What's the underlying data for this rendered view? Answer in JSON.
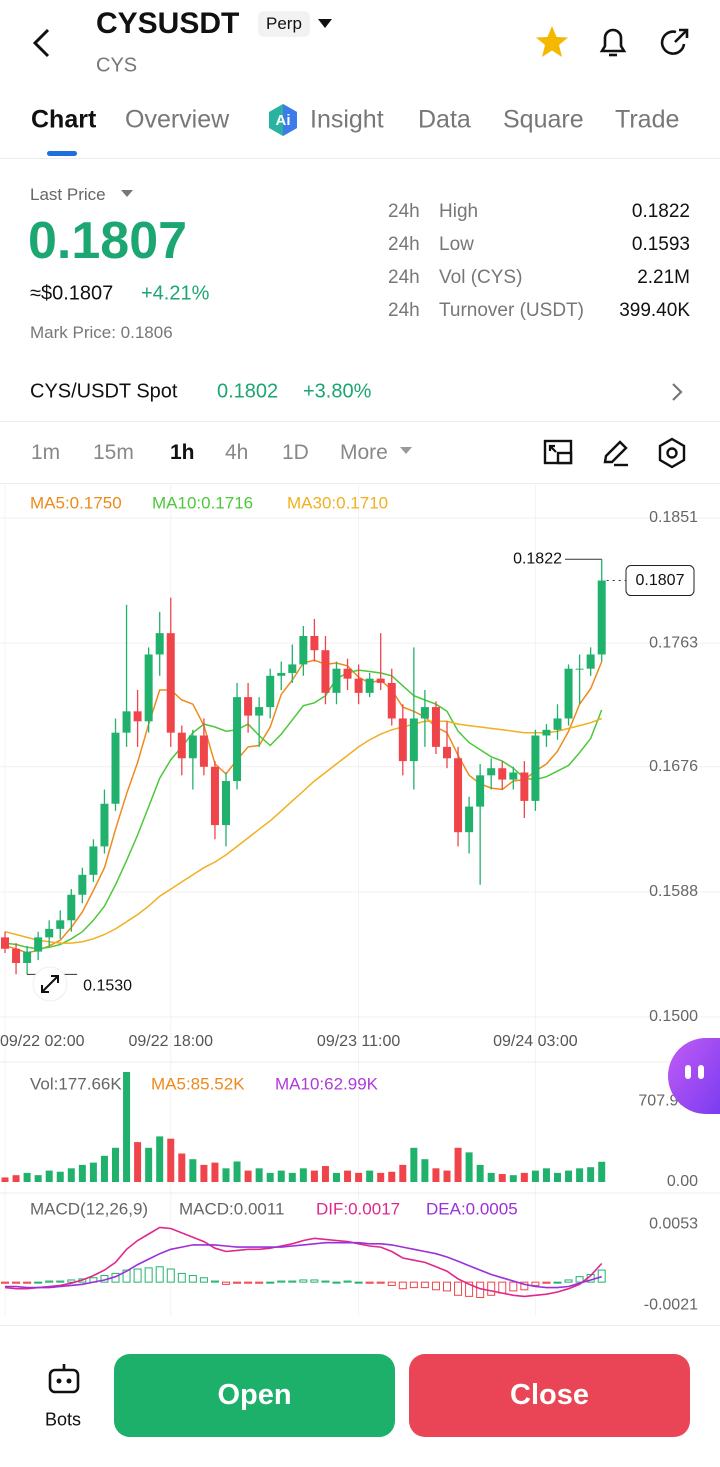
{
  "header": {
    "title": "CYSUSDT",
    "badge": "Perp",
    "subtitle": "CYS"
  },
  "tabs": [
    "Chart",
    "Overview",
    "Insight",
    "Data",
    "Square",
    "Trade"
  ],
  "price": {
    "label": "Last Price",
    "last": "0.1807",
    "usd": "≈$0.1807",
    "change": "+4.21%",
    "mark": "Mark Price: 0.1806"
  },
  "stats": [
    [
      "24h",
      "High",
      "0.1822"
    ],
    [
      "24h",
      "Low",
      "0.1593"
    ],
    [
      "24h",
      "Vol (CYS)",
      "2.21M"
    ],
    [
      "24h",
      "Turnover (USDT)",
      "399.40K"
    ]
  ],
  "spot": {
    "pair": "CYS/USDT Spot",
    "price": "0.1802",
    "change": "+3.80%"
  },
  "timeframes": [
    "1m",
    "15m",
    "1h",
    "4h",
    "1D",
    "More"
  ],
  "buttons": {
    "bots": "Bots",
    "open": "Open",
    "close": "Close"
  },
  "chart_data": [
    {
      "type": "candlestick",
      "up_color": "#20b26c",
      "down_color": "#ef454a",
      "grid": true,
      "categories": [
        "09/22 02:00",
        null,
        null,
        null,
        null,
        null,
        null,
        null,
        null,
        null,
        null,
        null,
        null,
        null,
        null,
        "09/22 18:00",
        null,
        null,
        null,
        null,
        null,
        null,
        null,
        null,
        null,
        null,
        null,
        null,
        null,
        null,
        null,
        null,
        "09/23 11:00",
        null,
        null,
        null,
        null,
        null,
        null,
        null,
        null,
        null,
        null,
        null,
        null,
        null,
        null,
        null,
        "09/24 03:00",
        null,
        null,
        null,
        null,
        null,
        null
      ],
      "ohlc": [
        [
          0.1556,
          0.156,
          0.1545,
          0.1548
        ],
        [
          0.1548,
          0.1552,
          0.153,
          0.1538
        ],
        [
          0.1538,
          0.155,
          0.153,
          0.1546
        ],
        [
          0.1546,
          0.156,
          0.154,
          0.1556
        ],
        [
          0.1556,
          0.1568,
          0.155,
          0.1562
        ],
        [
          0.1562,
          0.1575,
          0.1555,
          0.1568
        ],
        [
          0.1568,
          0.159,
          0.156,
          0.1586
        ],
        [
          0.1586,
          0.1605,
          0.158,
          0.16
        ],
        [
          0.16,
          0.1625,
          0.1595,
          0.162
        ],
        [
          0.162,
          0.166,
          0.1615,
          0.165
        ],
        [
          0.165,
          0.171,
          0.1645,
          0.17
        ],
        [
          0.17,
          0.179,
          0.169,
          0.1715
        ],
        [
          0.1715,
          0.173,
          0.169,
          0.1708
        ],
        [
          0.1708,
          0.176,
          0.17,
          0.1755
        ],
        [
          0.1755,
          0.1785,
          0.174,
          0.177
        ],
        [
          0.177,
          0.1795,
          0.169,
          0.17
        ],
        [
          0.17,
          0.1705,
          0.167,
          0.1682
        ],
        [
          0.1682,
          0.1702,
          0.166,
          0.1698
        ],
        [
          0.1698,
          0.171,
          0.167,
          0.1676
        ],
        [
          0.1676,
          0.168,
          0.1625,
          0.1635
        ],
        [
          0.1635,
          0.1672,
          0.162,
          0.1666
        ],
        [
          0.1666,
          0.1735,
          0.166,
          0.1725
        ],
        [
          0.1725,
          0.1735,
          0.17,
          0.1712
        ],
        [
          0.1712,
          0.1725,
          0.169,
          0.1718
        ],
        [
          0.1718,
          0.1745,
          0.171,
          0.174
        ],
        [
          0.174,
          0.175,
          0.173,
          0.1742
        ],
        [
          0.1742,
          0.1762,
          0.1735,
          0.1748
        ],
        [
          0.1748,
          0.1775,
          0.174,
          0.1768
        ],
        [
          0.1768,
          0.178,
          0.175,
          0.1758
        ],
        [
          0.1758,
          0.1768,
          0.172,
          0.1728
        ],
        [
          0.1728,
          0.175,
          0.172,
          0.1745
        ],
        [
          0.1745,
          0.1752,
          0.173,
          0.1738
        ],
        [
          0.1738,
          0.1748,
          0.172,
          0.1728
        ],
        [
          0.1728,
          0.1742,
          0.1725,
          0.1738
        ],
        [
          0.1738,
          0.177,
          0.173,
          0.1735
        ],
        [
          0.1735,
          0.1745,
          0.1705,
          0.171
        ],
        [
          0.171,
          0.172,
          0.167,
          0.168
        ],
        [
          0.168,
          0.176,
          0.166,
          0.171
        ],
        [
          0.171,
          0.173,
          0.169,
          0.1718
        ],
        [
          0.1718,
          0.1722,
          0.1685,
          0.169
        ],
        [
          0.169,
          0.1708,
          0.1675,
          0.1682
        ],
        [
          0.1682,
          0.169,
          0.162,
          0.163
        ],
        [
          0.163,
          0.1655,
          0.1615,
          0.1648
        ],
        [
          0.1648,
          0.1678,
          0.1593,
          0.167
        ],
        [
          0.167,
          0.1682,
          0.166,
          0.1675
        ],
        [
          0.1675,
          0.168,
          0.166,
          0.1667
        ],
        [
          0.1667,
          0.1676,
          0.166,
          0.1672
        ],
        [
          0.1672,
          0.168,
          0.164,
          0.1652
        ],
        [
          0.1652,
          0.1702,
          0.1645,
          0.1698
        ],
        [
          0.1698,
          0.1706,
          0.169,
          0.1702
        ],
        [
          0.1702,
          0.172,
          0.1695,
          0.171
        ],
        [
          0.171,
          0.1748,
          0.1705,
          0.1745
        ],
        [
          0.1745,
          0.1755,
          0.172,
          0.1745
        ],
        [
          0.1745,
          0.176,
          0.174,
          0.1755
        ],
        [
          0.1755,
          0.1822,
          0.175,
          0.1807
        ]
      ],
      "series": [
        {
          "name": "MA5:0.1750",
          "color": "#ee8a1c",
          "values": [
            0.155,
            0.1548,
            0.1545,
            0.1547,
            0.155,
            0.1554,
            0.1563,
            0.1574,
            0.1589,
            0.1605,
            0.1632,
            0.1657,
            0.1679,
            0.1706,
            0.173,
            0.173,
            0.1723,
            0.172,
            0.1705,
            0.1678,
            0.1671,
            0.1681,
            0.169,
            0.1691,
            0.1704,
            0.1727,
            0.1737,
            0.1749,
            0.1751,
            0.1748,
            0.1749,
            0.1747,
            0.1739,
            0.1735,
            0.1737,
            0.173,
            0.1718,
            0.1715,
            0.1711,
            0.1704,
            0.17,
            0.1684,
            0.167,
            0.1664,
            0.1661,
            0.166,
            0.1666,
            0.1667,
            0.1673,
            0.1678,
            0.1687,
            0.1701,
            0.172,
            0.1731,
            0.175
          ]
        },
        {
          "name": "MA10:0.1716",
          "color": "#4cc83a",
          "values": [
            0.1552,
            0.1551,
            0.1549,
            0.1548,
            0.1549,
            0.1551,
            0.1555,
            0.156,
            0.1568,
            0.1578,
            0.1593,
            0.161,
            0.1628,
            0.1648,
            0.1668,
            0.1681,
            0.169,
            0.17,
            0.1706,
            0.1704,
            0.1701,
            0.1702,
            0.1706,
            0.1698,
            0.1691,
            0.1699,
            0.1709,
            0.1719,
            0.1721,
            0.1726,
            0.1738,
            0.1742,
            0.1744,
            0.1743,
            0.1742,
            0.174,
            0.1733,
            0.1726,
            0.1723,
            0.172,
            0.1715,
            0.1701,
            0.1693,
            0.1688,
            0.1683,
            0.168,
            0.1675,
            0.1668,
            0.1667,
            0.1669,
            0.1673,
            0.1677,
            0.1686,
            0.1696,
            0.1716
          ]
        },
        {
          "name": "MA30:0.1710",
          "color": "#f0b020",
          "values": [
            0.156,
            0.1558,
            0.1556,
            0.1554,
            0.1553,
            0.1552,
            0.1552,
            0.1553,
            0.1555,
            0.1558,
            0.1562,
            0.1567,
            0.1572,
            0.1578,
            0.1585,
            0.159,
            0.1595,
            0.16,
            0.1605,
            0.1609,
            0.1614,
            0.162,
            0.1626,
            0.1632,
            0.1638,
            0.1645,
            0.1652,
            0.1659,
            0.1666,
            0.1672,
            0.1678,
            0.1684,
            0.169,
            0.1695,
            0.1699,
            0.1702,
            0.1704,
            0.1706,
            0.1708,
            0.1708,
            0.1708,
            0.1706,
            0.1705,
            0.1704,
            0.1703,
            0.1702,
            0.1701,
            0.17,
            0.17,
            0.17,
            0.1701,
            0.1703,
            0.1705,
            0.1707,
            0.171
          ]
        }
      ],
      "ylim": [
        0.15,
        0.1851
      ],
      "yticks": [
        0.1851,
        0.1763,
        0.1676,
        0.1588,
        {
          "value": 0.15,
          "label": "0.1500"
        }
      ],
      "high_marker": 0.1822,
      "low_marker": {
        "value": 0.153,
        "label": "0.1530"
      },
      "last_marker": 0.1807
    },
    {
      "type": "bar",
      "series": [
        {
          "name": "Vol:177.66K",
          "color": "#888888",
          "values": [
            40,
            60,
            80,
            60,
            100,
            90,
            120,
            150,
            170,
            230,
            300,
            965,
            350,
            300,
            400,
            380,
            250,
            200,
            150,
            170,
            120,
            180,
            100,
            120,
            80,
            100,
            80,
            120,
            100,
            140,
            80,
            100,
            80,
            100,
            80,
            90,
            150,
            300,
            200,
            120,
            100,
            300,
            260,
            150,
            80,
            70,
            60,
            80,
            100,
            120,
            80,
            100,
            120,
            130,
            177.66
          ]
        }
      ],
      "indicators": [
        {
          "name": "MA5:85.52K",
          "color": "#ee8a1c"
        },
        {
          "name": "MA10:62.99K",
          "color": "#b03ad8"
        }
      ],
      "ylim": [
        0,
        1000
      ],
      "yticks": [
        {
          "value": 707.96,
          "label": "707.96K"
        },
        {
          "value": 0,
          "label": "0.00"
        }
      ]
    },
    {
      "type": "macd",
      "title": "MACD(12,26,9)",
      "series": [
        {
          "name": "MACD:0.0011",
          "color": "#888888",
          "values": [
            -0.0001,
            -0.0001,
            -0.0001,
            0,
            0.0001,
            0.0001,
            0.0002,
            0.0003,
            0.0004,
            0.0006,
            0.0008,
            0.0011,
            0.0012,
            0.0013,
            0.0014,
            0.0012,
            0.0008,
            0.0006,
            0.0004,
            0.0001,
            -0.0002,
            -0.0001,
            -0.0001,
            -0.0001,
            0,
            0.0001,
            0.0001,
            0.0002,
            0.0002,
            0.0001,
            0,
            0.0001,
            0,
            -0.0001,
            -0.0001,
            -0.0003,
            -0.0006,
            -0.0005,
            -0.0005,
            -0.0007,
            -0.0008,
            -0.0012,
            -0.0013,
            -0.0014,
            -0.0012,
            -0.001,
            -0.0008,
            -0.0007,
            -0.0003,
            -0.0001,
            0,
            0.0002,
            0.0005,
            0.0007,
            0.0011
          ]
        },
        {
          "name": "DIF:0.0017",
          "color": "#e0288c",
          "values": [
            -0.0005,
            -0.0006,
            -0.0006,
            -0.0005,
            -0.0004,
            -0.0003,
            -0.0001,
            0.0002,
            0.0006,
            0.0011,
            0.0018,
            0.003,
            0.0038,
            0.0044,
            0.005,
            0.0049,
            0.0045,
            0.0041,
            0.0037,
            0.0031,
            0.0028,
            0.0029,
            0.003,
            0.003,
            0.0031,
            0.0033,
            0.0035,
            0.0038,
            0.004,
            0.0039,
            0.0038,
            0.0037,
            0.0035,
            0.0033,
            0.0032,
            0.0028,
            0.0022,
            0.002,
            0.0018,
            0.0014,
            0.001,
            0.0003,
            -0.0002,
            -0.0006,
            -0.0008,
            -0.001,
            -0.0012,
            -0.0013,
            -0.0012,
            -0.0011,
            -0.0009,
            -0.0006,
            -0.0002,
            0.0006,
            0.0017
          ]
        },
        {
          "name": "DEA:0.0005",
          "color": "#9b30d9",
          "values": [
            -0.0004,
            -0.0004,
            -0.0005,
            -0.0005,
            -0.0005,
            -0.0004,
            -0.0003,
            -0.0002,
            0,
            0.0002,
            0.0005,
            0.001,
            0.0016,
            0.0021,
            0.0026,
            0.003,
            0.0032,
            0.0034,
            0.0034,
            0.0034,
            0.0033,
            0.0032,
            0.0032,
            0.0032,
            0.0032,
            0.0032,
            0.0033,
            0.0034,
            0.0035,
            0.0036,
            0.0036,
            0.0036,
            0.0036,
            0.0035,
            0.0035,
            0.0034,
            0.0032,
            0.003,
            0.0028,
            0.0026,
            0.0023,
            0.0019,
            0.0015,
            0.0011,
            0.0007,
            0.0004,
            0.0001,
            -0.0002,
            -0.0004,
            -0.0005,
            -0.0005,
            -0.0004,
            -0.0001,
            0.0002,
            0.0005
          ]
        }
      ],
      "ylim": [
        -0.003,
        0.0075
      ],
      "yticks": [
        0.0053,
        -0.0021
      ]
    }
  ]
}
